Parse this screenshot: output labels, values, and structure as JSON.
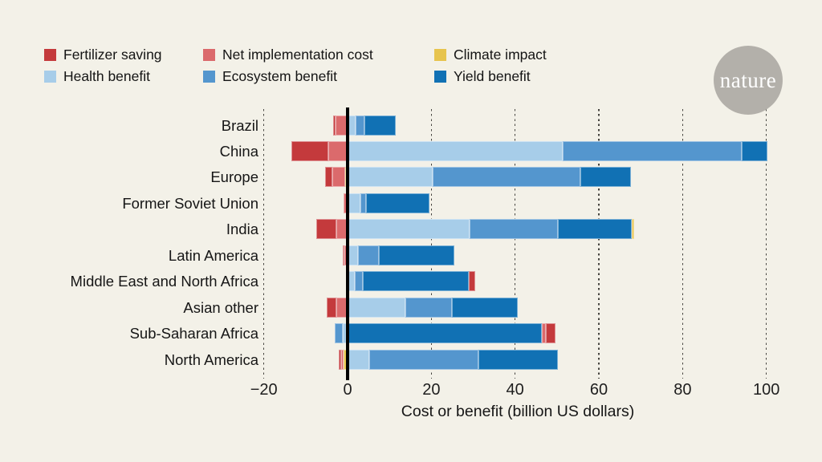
{
  "page": {
    "background": "#f3f1e8"
  },
  "logo": {
    "text": "nature",
    "circle_color": "#b3b0aa",
    "text_color": "#ffffff"
  },
  "legend": {
    "items": [
      {
        "label": "Fertilizer saving",
        "series": "fertilizer"
      },
      {
        "label": "Net implementation cost",
        "series": "implementation"
      },
      {
        "label": "Climate impact",
        "series": "climate"
      },
      {
        "label": "Health benefit",
        "series": "health"
      },
      {
        "label": "Ecosystem benefit",
        "series": "ecosystem"
      },
      {
        "label": "Yield benefit",
        "series": "yield"
      }
    ]
  },
  "chart_data": {
    "type": "bar",
    "orientation": "horizontal",
    "stacked": true,
    "title": "",
    "xlabel": "Cost or benefit (billion US dollars)",
    "ylabel": "",
    "unit": "billion US dollars",
    "xlim": [
      -20,
      100
    ],
    "xticks": [
      -20,
      0,
      20,
      40,
      60,
      80,
      100
    ],
    "xtick_labels": [
      "−20",
      "0",
      "20",
      "40",
      "60",
      "80",
      "100"
    ],
    "grid": "dotted vertical gridlines at every tick; solid black line at 0",
    "legend_position": "top-left",
    "series_colors": {
      "fertilizer": "#c43a3c",
      "implementation": "#db6a6c",
      "climate": "#e7c44d",
      "health": "#a7cde9",
      "ecosystem": "#5496ce",
      "yield": "#1171b4"
    },
    "rows": [
      {
        "region": "Brazil",
        "costs": [
          {
            "series": "fertilizer",
            "value": 0.6
          },
          {
            "series": "implementation",
            "value": 2.9
          }
        ],
        "benefits": [
          {
            "series": "health",
            "value": 2.0
          },
          {
            "series": "ecosystem",
            "value": 2.0
          },
          {
            "series": "yield",
            "value": 7.5
          }
        ]
      },
      {
        "region": "China",
        "costs": [
          {
            "series": "fertilizer",
            "value": 8.8
          },
          {
            "series": "implementation",
            "value": 4.6
          }
        ],
        "benefits": [
          {
            "series": "health",
            "value": 51.3
          },
          {
            "series": "ecosystem",
            "value": 42.8
          },
          {
            "series": "yield",
            "value": 6.2
          }
        ]
      },
      {
        "region": "Europe",
        "costs": [
          {
            "series": "fertilizer",
            "value": 1.8
          },
          {
            "series": "implementation",
            "value": 3.0
          },
          {
            "series": "climate",
            "value": 0.6
          }
        ],
        "benefits": [
          {
            "series": "health",
            "value": 20.3
          },
          {
            "series": "ecosystem",
            "value": 35.3
          },
          {
            "series": "yield",
            "value": 12.0
          }
        ]
      },
      {
        "region": "Former Soviet Union",
        "costs": [
          {
            "series": "implementation",
            "value": 1.0
          }
        ],
        "benefits": [
          {
            "series": "health",
            "value": 3.0
          },
          {
            "series": "ecosystem",
            "value": 1.5
          },
          {
            "series": "yield",
            "value": 15.0
          }
        ]
      },
      {
        "region": "India",
        "costs": [
          {
            "series": "fertilizer",
            "value": 4.7
          },
          {
            "series": "implementation",
            "value": 2.7
          }
        ],
        "benefits": [
          {
            "series": "health",
            "value": 29.2
          },
          {
            "series": "ecosystem",
            "value": 21.0
          },
          {
            "series": "yield",
            "value": 17.7
          },
          {
            "series": "climate",
            "value": 0.6
          }
        ]
      },
      {
        "region": "Latin America",
        "costs": [
          {
            "series": "fertilizer",
            "value": 0.4
          },
          {
            "series": "implementation",
            "value": 0.8
          }
        ],
        "benefits": [
          {
            "series": "health",
            "value": 2.4
          },
          {
            "series": "ecosystem",
            "value": 5.1
          },
          {
            "series": "yield",
            "value": 18.0
          }
        ]
      },
      {
        "region": "Middle East and North Africa",
        "costs": [],
        "benefits": [
          {
            "series": "health",
            "value": 1.7
          },
          {
            "series": "ecosystem",
            "value": 1.9
          },
          {
            "series": "yield",
            "value": 25.4
          },
          {
            "series": "fertilizer",
            "value": 1.4
          }
        ]
      },
      {
        "region": "Asian other",
        "costs": [
          {
            "series": "fertilizer",
            "value": 2.2
          },
          {
            "series": "implementation",
            "value": 2.7
          }
        ],
        "benefits": [
          {
            "series": "health",
            "value": 13.8
          },
          {
            "series": "ecosystem",
            "value": 11.1
          },
          {
            "series": "yield",
            "value": 15.8
          }
        ]
      },
      {
        "region": "Sub-Saharan Africa",
        "costs": [
          {
            "series": "ecosystem",
            "value": 1.9
          },
          {
            "series": "health",
            "value": 1.2
          }
        ],
        "benefits": [
          {
            "series": "yield",
            "value": 46.3
          },
          {
            "series": "implementation",
            "value": 1.0
          },
          {
            "series": "fertilizer",
            "value": 2.4
          }
        ]
      },
      {
        "region": "North America",
        "costs": [
          {
            "series": "fertilizer",
            "value": 0.7
          },
          {
            "series": "implementation",
            "value": 0.6
          },
          {
            "series": "climate",
            "value": 0.9
          }
        ],
        "benefits": [
          {
            "series": "health",
            "value": 5.1
          },
          {
            "series": "ecosystem",
            "value": 26.2
          },
          {
            "series": "yield",
            "value": 18.9
          }
        ]
      }
    ]
  }
}
